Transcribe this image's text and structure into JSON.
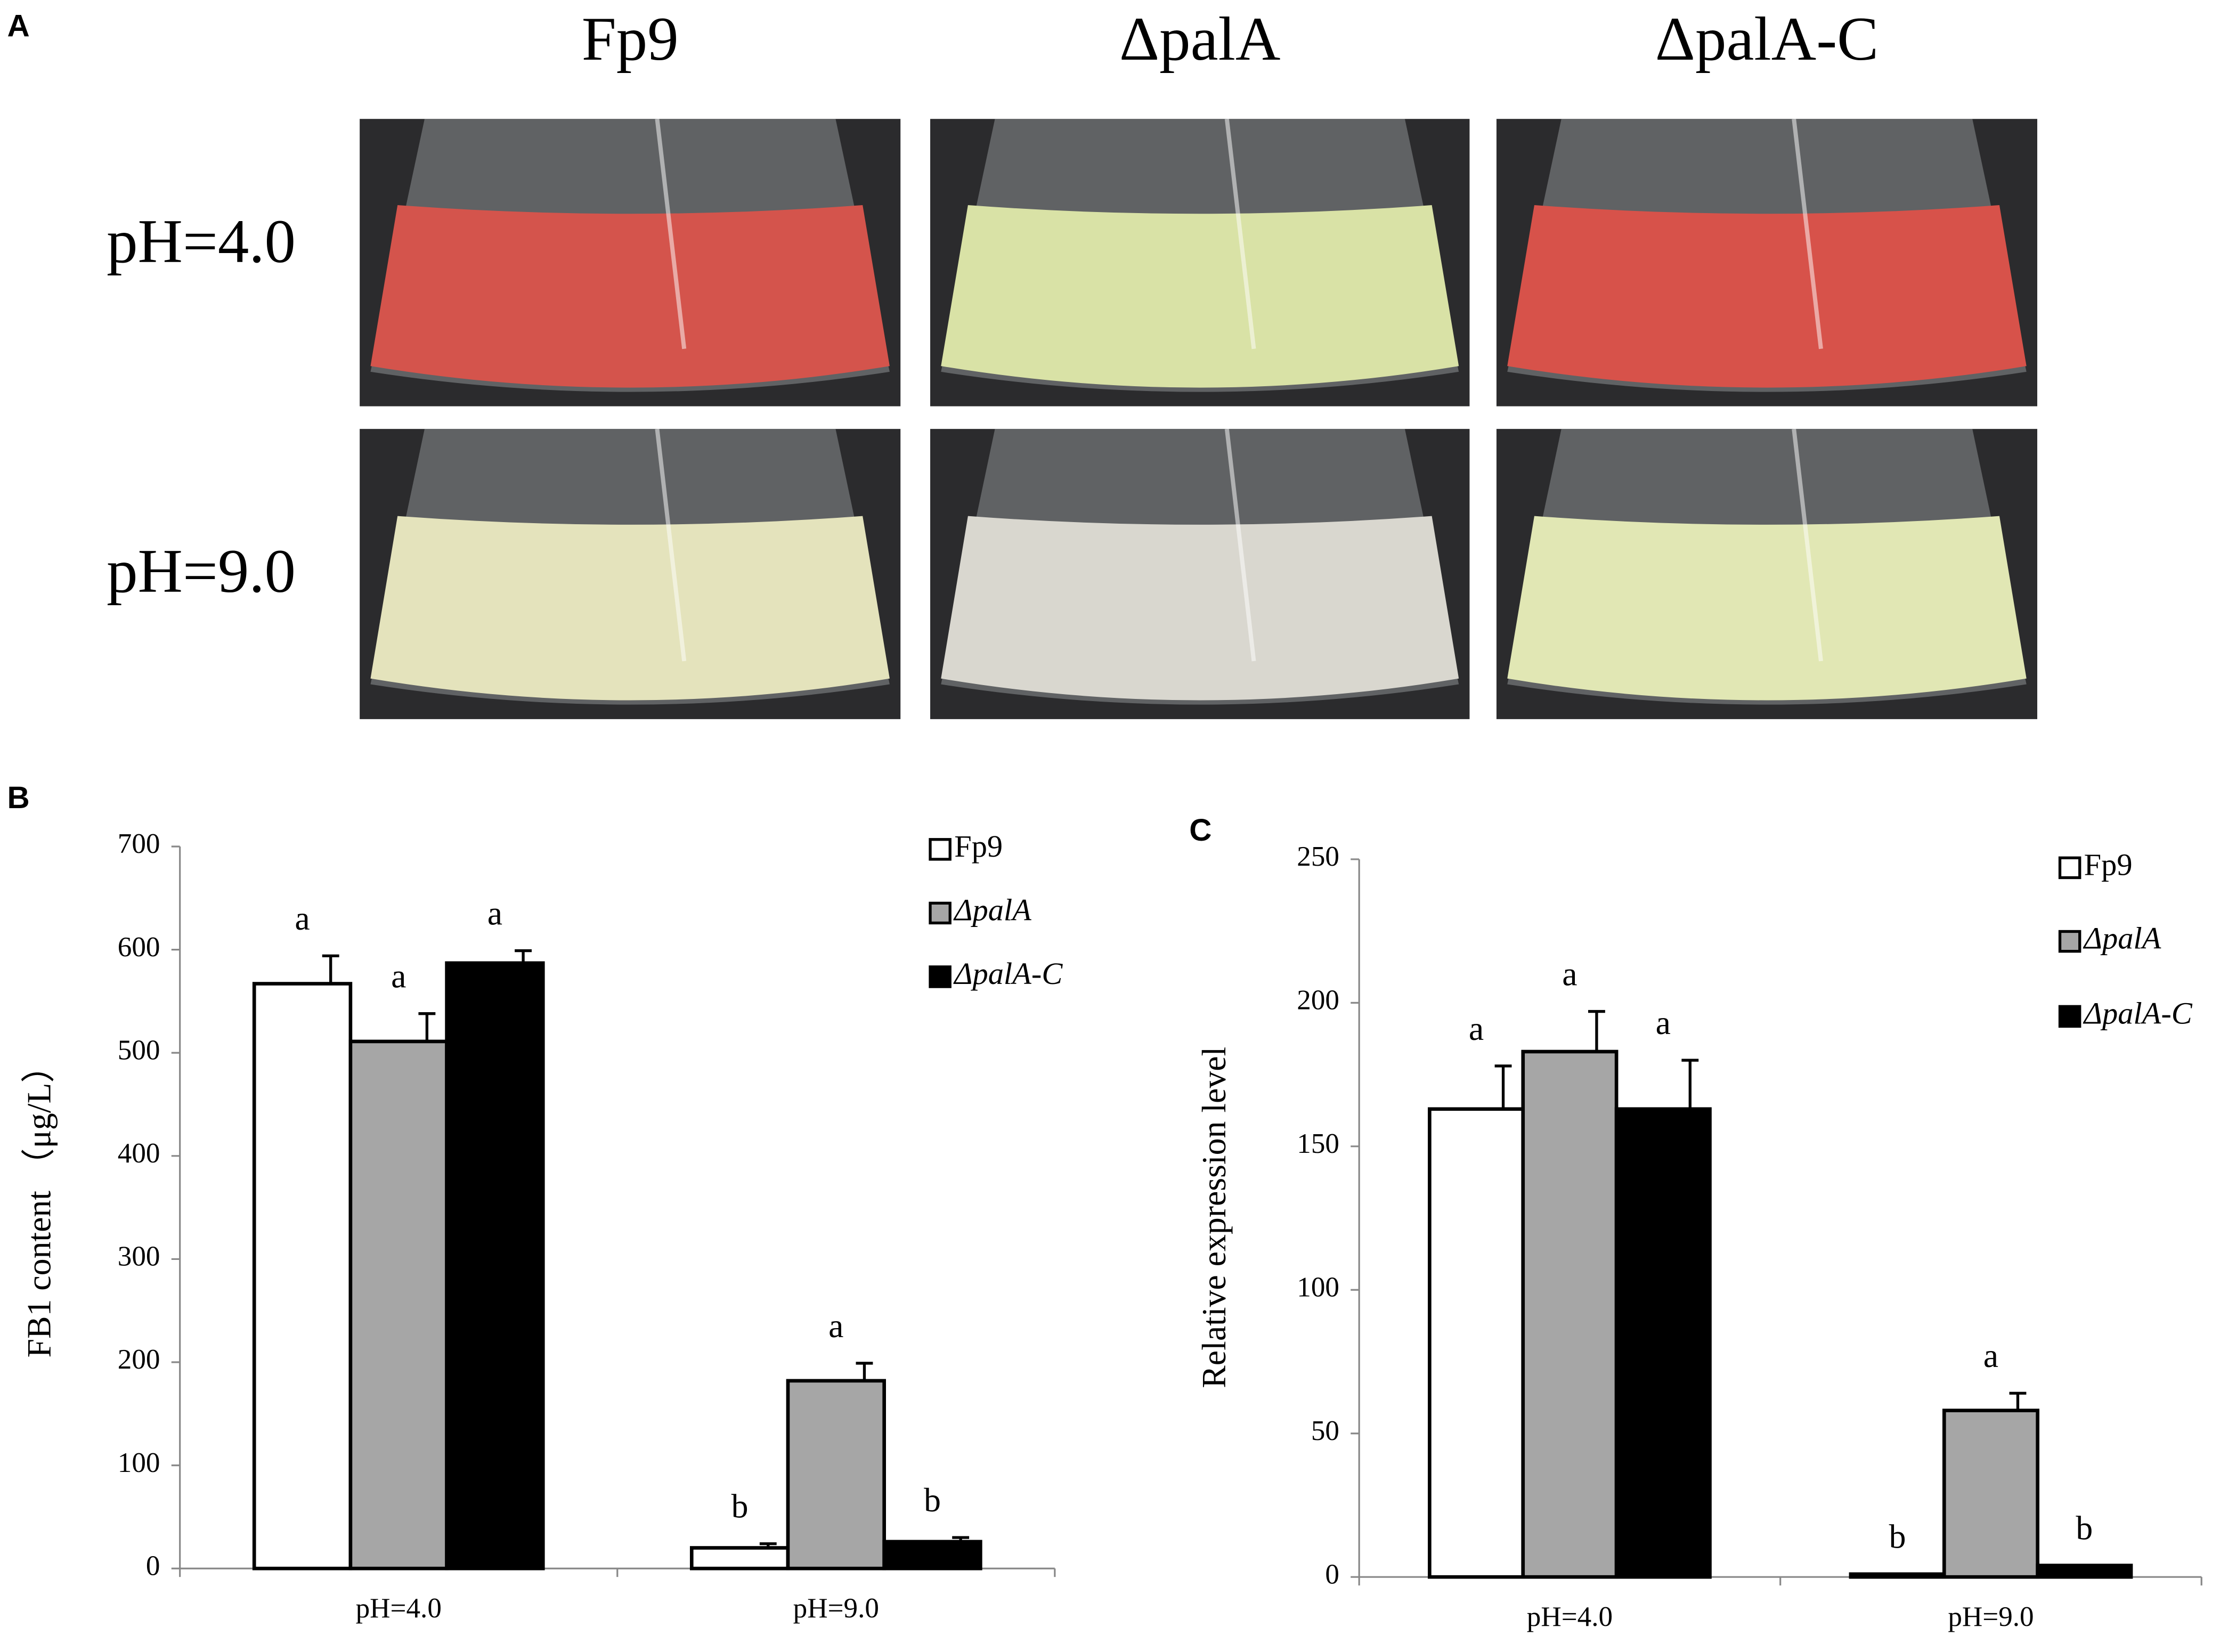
{
  "panel_a": {
    "label": "A",
    "columns": [
      "Fp9",
      "ΔpalA",
      "ΔpalA-C"
    ],
    "rows": [
      "pH=4.0",
      "pH=9.0"
    ]
  },
  "chart_data": [
    {
      "type": "bar",
      "panel": "B",
      "ylabel": "FB1 content （μg/L）",
      "categories": [
        "pH=4.0",
        "pH=9.0"
      ],
      "series": [
        {
          "name": "Fp9",
          "color": "#ffffff",
          "values": [
            567,
            20
          ],
          "errors": [
            27,
            4
          ],
          "letters": [
            "a",
            "b"
          ]
        },
        {
          "name": "ΔpalA",
          "color": "#a6a6a6",
          "values": [
            511,
            182
          ],
          "errors": [
            27,
            17
          ],
          "letters": [
            "a",
            "a"
          ]
        },
        {
          "name": "ΔpalA-C",
          "color": "#000000",
          "values": [
            587,
            26
          ],
          "errors": [
            12,
            4
          ],
          "letters": [
            "a",
            "b"
          ]
        }
      ],
      "ylim": [
        0,
        700
      ],
      "yticks": [
        0,
        100,
        200,
        300,
        400,
        500,
        600,
        700
      ]
    },
    {
      "type": "bar",
      "panel": "C",
      "ylabel": "Relative expression level",
      "categories": [
        "pH=4.0",
        "pH=9.0"
      ],
      "series": [
        {
          "name": "Fp9",
          "color": "#ffffff",
          "values": [
            163,
            1
          ],
          "errors": [
            15,
            0
          ],
          "letters": [
            "a",
            "b"
          ]
        },
        {
          "name": "ΔpalA",
          "color": "#a6a6a6",
          "values": [
            183,
            58
          ],
          "errors": [
            14,
            6
          ],
          "letters": [
            "a",
            "a"
          ]
        },
        {
          "name": "ΔpalA-C",
          "color": "#000000",
          "values": [
            163,
            4
          ],
          "errors": [
            17,
            0
          ],
          "letters": [
            "a",
            "b"
          ]
        }
      ],
      "ylim": [
        0,
        250
      ],
      "yticks": [
        0,
        50,
        100,
        150,
        200,
        250
      ]
    }
  ]
}
